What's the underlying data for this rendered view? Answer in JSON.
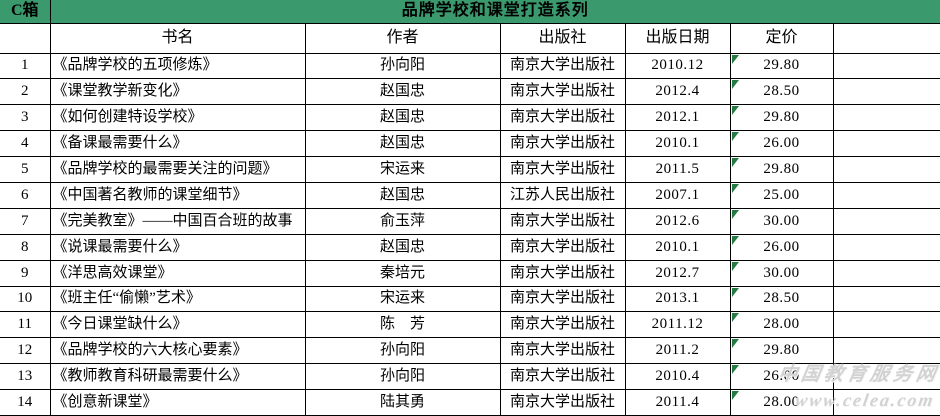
{
  "sheet": {
    "box_label": "C箱",
    "title": "品牌学校和课堂打造系列",
    "columns": [
      "",
      "书名",
      "作者",
      "出版社",
      "出版日期",
      "定价",
      ""
    ],
    "rows": [
      {
        "no": "1",
        "title": "《品牌学校的五项修炼》",
        "author": "孙向阳",
        "publisher": "南京大学出版社",
        "date": "2010.12",
        "price": "29.80"
      },
      {
        "no": "2",
        "title": "《课堂教学新变化》",
        "author": "赵国忠",
        "publisher": "南京大学出版社",
        "date": "2012.4",
        "price": "28.50"
      },
      {
        "no": "3",
        "title": "《如何创建特设学校》",
        "author": "赵国忠",
        "publisher": "南京大学出版社",
        "date": "2012.1",
        "price": "29.80"
      },
      {
        "no": "4",
        "title": "《备课最需要什么》",
        "author": "赵国忠",
        "publisher": "南京大学出版社",
        "date": "2010.1",
        "price": "26.00"
      },
      {
        "no": "5",
        "title": "《品牌学校的最需要关注的问题》",
        "author": "宋运来",
        "publisher": "南京大学出版社",
        "date": "2011.5",
        "price": "29.80"
      },
      {
        "no": "6",
        "title": "《中国著名教师的课堂细节》",
        "author": "赵国忠",
        "publisher": "江苏人民出版社",
        "date": "2007.1",
        "price": "25.00"
      },
      {
        "no": "7",
        "title": "《完美教室》——中国百合班的故事",
        "author": "俞玉萍",
        "publisher": "南京大学出版社",
        "date": "2012.6",
        "price": "30.00"
      },
      {
        "no": "8",
        "title": "《说课最需要什么》",
        "author": "赵国忠",
        "publisher": "南京大学出版社",
        "date": "2010.1",
        "price": "26.00"
      },
      {
        "no": "9",
        "title": "《洋思高效课堂》",
        "author": "秦培元",
        "publisher": "南京大学出版社",
        "date": "2012.7",
        "price": "30.00"
      },
      {
        "no": "10",
        "title": "《班主任“偷懒”艺术》",
        "author": "宋运来",
        "publisher": "南京大学出版社",
        "date": "2013.1",
        "price": "28.50"
      },
      {
        "no": "11",
        "title": "《今日课堂缺什么》",
        "author": "陈　芳",
        "publisher": "南京大学出版社",
        "date": "2011.12",
        "price": "28.00"
      },
      {
        "no": "12",
        "title": "《品牌学校的六大核心要素》",
        "author": "孙向阳",
        "publisher": "南京大学出版社",
        "date": "2011.2",
        "price": "29.80"
      },
      {
        "no": "13",
        "title": "《教师教育科研最需要什么》",
        "author": "孙向阳",
        "publisher": "南京大学出版社",
        "date": "2010.4",
        "price": "26.00"
      },
      {
        "no": "14",
        "title": "《创意新课堂》",
        "author": "陆其勇",
        "publisher": "南京大学出版社",
        "date": "2011.4",
        "price": "28.00"
      }
    ]
  },
  "watermark": {
    "line1": "中国教育服务网",
    "line2": "www.celea.com"
  },
  "colors": {
    "title_bar_green": "#3B9A6D",
    "error_triangle_green": "#267A43",
    "grid_line": "#000000",
    "watermark_gray": "#d2d2d2"
  }
}
